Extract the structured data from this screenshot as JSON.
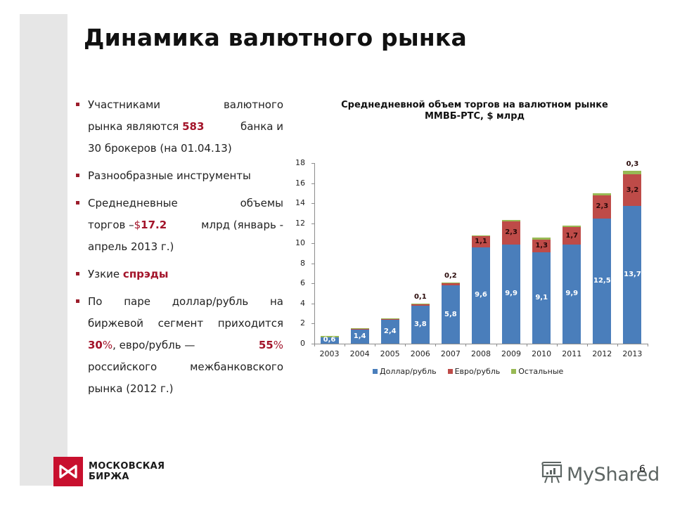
{
  "slide": {
    "title_bold": "Динамика",
    "title_rest": " валютного рынка",
    "page_number": "6",
    "accent_color": "#a3142a"
  },
  "bullets": [
    {
      "line1_left": "Участниками",
      "line1_right": "валютного",
      "line2_a": "рынка являются ",
      "line2_hl": "583",
      "line2_b": " банка и",
      "line3": "30 брокеров (на 01.04.13)"
    },
    {
      "text": "Разнообразные инструменты"
    },
    {
      "line1_left": "Среднедневные",
      "line1_right": "объемы",
      "line2_a": "торгов –",
      "line2_dollar": "$",
      "line2_hl": "17.2",
      "line2_b": " млрд (январь -",
      "line3": "апрель 2013 г.)"
    },
    {
      "text_a": "Узкие ",
      "text_hl": "спрэды"
    },
    {
      "line1": "По паре доллар/рубль на",
      "line2": "биржевой сегмент приходится",
      "line3_hl1": "30",
      "line3_p1": "%",
      "line3_mid": ", евро/рубль — ",
      "line3_hl2": "55",
      "line3_p2": "%",
      "line4": "российского межбанковского",
      "line5": "рынка (2012 г.)"
    }
  ],
  "chart_data": {
    "type": "bar",
    "stacked": true,
    "title": "Среднедневной объем торгов на валютном рынке ММВБ-РТС, $ млрд",
    "title_line1": "Среднедневной объем торгов на валютном рынке",
    "title_line2": "ММВБ-РТС, $ млрд",
    "xlabel": "",
    "ylabel": "",
    "ylim": [
      0,
      18
    ],
    "yticks": [
      "0",
      "2",
      "4",
      "6",
      "8",
      "10",
      "12",
      "14",
      "16",
      "18"
    ],
    "grid": false,
    "legend_position": "bottom",
    "categories": [
      "2003",
      "2004",
      "2005",
      "2006",
      "2007",
      "2008",
      "2009",
      "2010",
      "2011",
      "2012",
      "2013"
    ],
    "series": [
      {
        "name": "Доллар/рубль",
        "color": "#4a7ebb",
        "values": [
          0.6,
          1.4,
          2.4,
          3.8,
          5.8,
          9.6,
          9.9,
          9.1,
          9.9,
          12.5,
          13.7
        ]
      },
      {
        "name": "Евро/рубль",
        "color": "#be4b48",
        "values": [
          0.05,
          0.05,
          0.05,
          0.1,
          0.2,
          1.1,
          2.3,
          1.3,
          1.7,
          2.3,
          3.2
        ]
      },
      {
        "name": "Остальные",
        "color": "#98b954",
        "values": [
          0.02,
          0.02,
          0.02,
          0.02,
          0.02,
          0.05,
          0.05,
          0.15,
          0.2,
          0.2,
          0.3
        ]
      }
    ],
    "data_labels": {
      "usd": [
        "0,6",
        "1,4",
        "2,4",
        "3,8",
        "5,8",
        "9,6",
        "9,9",
        "9,1",
        "9,9",
        "12,5",
        "13,7"
      ],
      "eur": [
        "",
        "",
        "",
        "0,1",
        "0,2",
        "1,1",
        "2,3",
        "1,3",
        "1,7",
        "2,3",
        "3,2"
      ],
      "oth": [
        "",
        "",
        "",
        "",
        "",
        "",
        "",
        "",
        "",
        "",
        "0,3"
      ]
    }
  },
  "legend": [
    {
      "label": "Доллар/рубль",
      "color": "#4a7ebb"
    },
    {
      "label": "Евро/рубль",
      "color": "#be4b48"
    },
    {
      "label": "Остальные",
      "color": "#98b954"
    }
  ],
  "logo": {
    "line1": "МОСКОВСКАЯ",
    "line2": "БИРЖА",
    "color": "#c8102e"
  },
  "watermark": {
    "text": "MyShared",
    "icon": "presentation-board-icon"
  }
}
